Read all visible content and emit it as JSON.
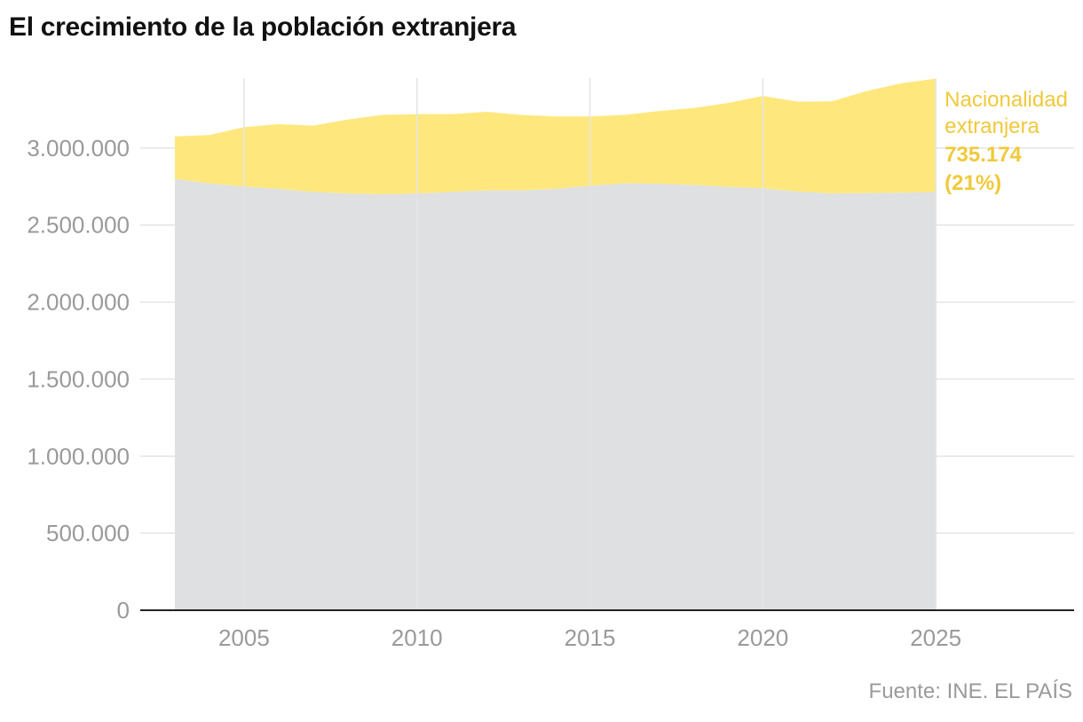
{
  "title": "El crecimiento de la población extranjera",
  "source": "Fuente: INE. EL PAÍS",
  "colors": {
    "foreign": "#fee87e",
    "spanish": "#dfe0e2",
    "grid": "#e4e4e4",
    "axis": "#222222",
    "tick_text": "#9a9a9a",
    "annotation": "#f0c93c"
  },
  "chart_data": {
    "type": "area",
    "stacked": true,
    "grid": true,
    "x": [
      2003,
      2004,
      2005,
      2006,
      2007,
      2008,
      2009,
      2010,
      2011,
      2012,
      2013,
      2014,
      2015,
      2016,
      2017,
      2018,
      2019,
      2020,
      2021,
      2022,
      2023,
      2024,
      2025
    ],
    "xlim": [
      2002,
      2029
    ],
    "ylim": [
      0,
      3500000
    ],
    "xticks": [
      2005,
      2010,
      2015,
      2020,
      2025
    ],
    "xtick_labels": [
      "2005",
      "2010",
      "2015",
      "2020",
      "2025"
    ],
    "yticks": [
      0,
      500000,
      1000000,
      1500000,
      2000000,
      2500000,
      3000000
    ],
    "ytick_labels": [
      "0",
      "500.000",
      "1.000.000",
      "1.500.000",
      "2.000.000",
      "2.500.000",
      "3.000.000"
    ],
    "series": [
      {
        "key": "spanish",
        "values": [
          2800000,
          2770000,
          2750000,
          2735000,
          2715000,
          2705000,
          2700000,
          2705000,
          2715000,
          2725000,
          2725000,
          2735000,
          2755000,
          2770000,
          2768000,
          2760000,
          2748000,
          2738000,
          2718000,
          2705000,
          2708000,
          2710000,
          2715000
        ]
      },
      {
        "key": "foreign",
        "name": "Nacionalidad extranjera",
        "values": [
          275000,
          315000,
          385000,
          420000,
          430000,
          480000,
          515000,
          515000,
          505000,
          510000,
          490000,
          470000,
          450000,
          445000,
          472000,
          500000,
          545000,
          600000,
          583000,
          598000,
          662000,
          710000,
          735174
        ]
      }
    ],
    "annotation": {
      "series": "foreign",
      "label_lines": [
        "Nacionalidad",
        "extranjera"
      ],
      "value": "735.174",
      "share": "(21%)"
    }
  }
}
